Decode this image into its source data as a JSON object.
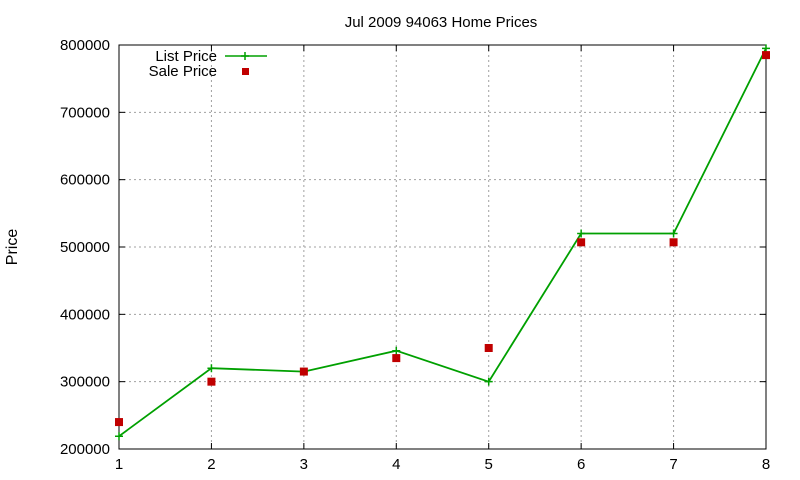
{
  "chart_data": {
    "type": "line",
    "title": "Jul 2009 94063 Home Prices",
    "xlabel": "",
    "ylabel": "Price",
    "xlim": [
      1,
      8
    ],
    "ylim": [
      200000,
      800000
    ],
    "x_ticks": [
      1,
      2,
      3,
      4,
      5,
      6,
      7,
      8
    ],
    "y_ticks": [
      200000,
      300000,
      400000,
      500000,
      600000,
      700000,
      800000
    ],
    "grid": true,
    "legend_position": "top-left",
    "x": [
      1,
      2,
      3,
      4,
      5,
      6,
      7,
      8
    ],
    "series": [
      {
        "name": "List Price",
        "style": "line+cross",
        "color": "#00a000",
        "values": [
          219000,
          320000,
          315000,
          346000,
          300000,
          520000,
          520000,
          795000
        ]
      },
      {
        "name": "Sale Price",
        "style": "square-points",
        "color": "#c00000",
        "values": [
          240000,
          300000,
          315000,
          335000,
          350000,
          507000,
          507000,
          785000
        ]
      }
    ]
  }
}
